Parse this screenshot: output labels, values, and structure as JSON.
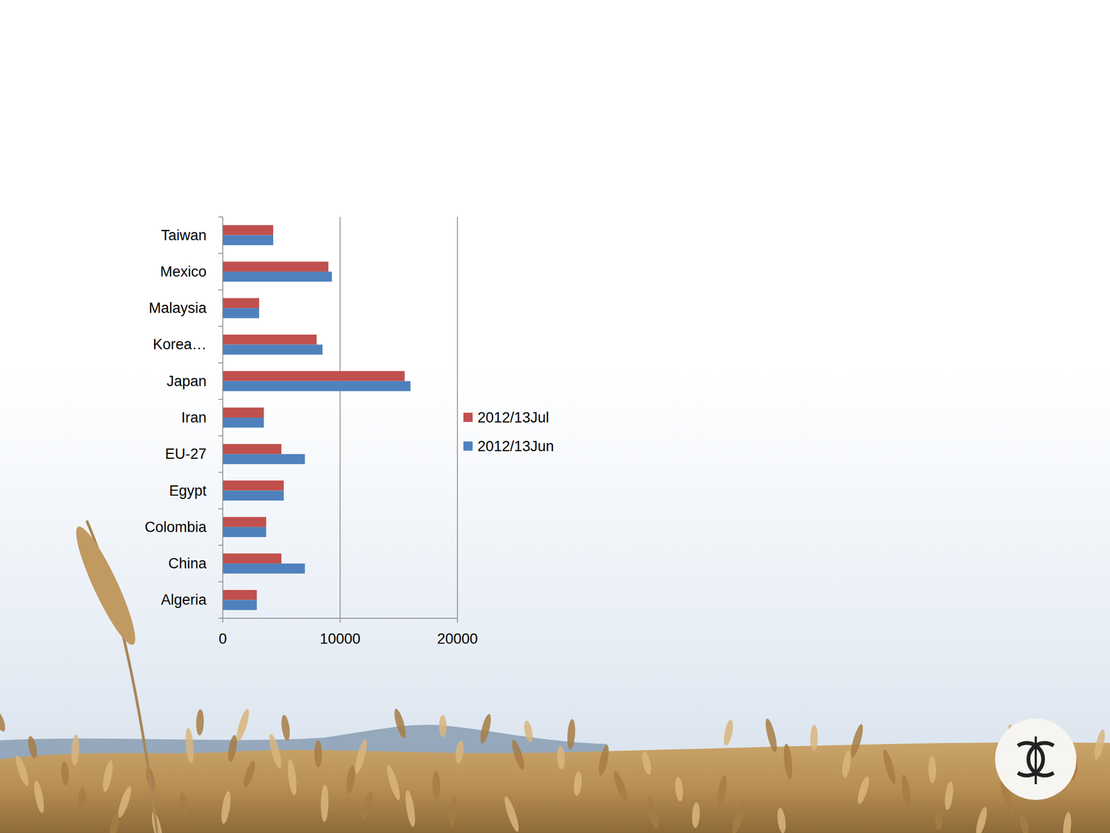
{
  "chart_data": {
    "type": "bar",
    "orientation": "horizontal",
    "categories": [
      "Algeria",
      "China",
      "Colombia",
      "Egypt",
      "EU-27",
      "Iran",
      "Japan",
      "Korea…",
      "Malaysia",
      "Mexico",
      "Taiwan"
    ],
    "series": [
      {
        "name": "2012/13Jul",
        "color": "#c0504d",
        "values": [
          2900,
          5000,
          3700,
          5200,
          5000,
          3500,
          15500,
          8000,
          3100,
          9000,
          4300
        ]
      },
      {
        "name": "2012/13Jun",
        "color": "#4f81bd",
        "values": [
          2900,
          7000,
          3700,
          5200,
          7000,
          3500,
          16000,
          8500,
          3100,
          9300,
          4300
        ]
      }
    ],
    "xlim": [
      0,
      20000
    ],
    "xticks": [
      0,
      10000,
      20000
    ],
    "grid": true,
    "legend": "right"
  }
}
